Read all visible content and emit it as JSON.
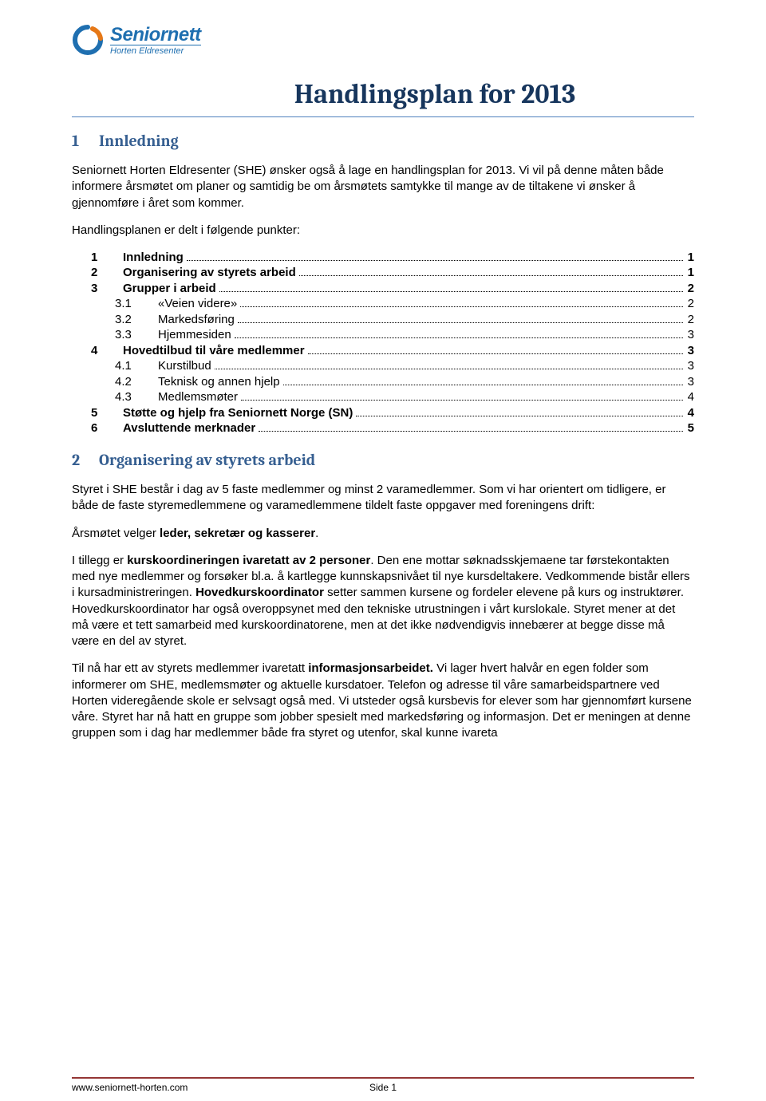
{
  "logo": {
    "main": "Seniornett",
    "sub": "Horten Eldresenter",
    "icon_color": "#1f6fb0",
    "accent_color": "#e67817"
  },
  "title": "Handlingsplan for 2013",
  "section1": {
    "num": "1",
    "heading": "Innledning",
    "p1": "Seniornett Horten Eldresenter (SHE) ønsker også å lage en handlingsplan for 2013. Vi vil på denne måten både informere årsmøtet om planer og samtidig be om årsmøtets samtykke til mange av de tiltakene vi ønsker å gjennomføre i året som kommer.",
    "p2": "Handlingsplanen er delt i følgende punkter:"
  },
  "toc": [
    {
      "level": 0,
      "num": "1",
      "label": "Innledning",
      "page": "1"
    },
    {
      "level": 0,
      "num": "2",
      "label": "Organisering av styrets arbeid",
      "page": "1"
    },
    {
      "level": 0,
      "num": "3",
      "label": "Grupper i arbeid",
      "page": "2"
    },
    {
      "level": 1,
      "num": "3.1",
      "label": "«Veien videre»",
      "page": "2"
    },
    {
      "level": 1,
      "num": "3.2",
      "label": "Markedsføring",
      "page": "2"
    },
    {
      "level": 1,
      "num": "3.3",
      "label": "Hjemmesiden",
      "page": "3"
    },
    {
      "level": 0,
      "num": "4",
      "label": "Hovedtilbud til våre medlemmer",
      "page": "3"
    },
    {
      "level": 1,
      "num": "4.1",
      "label": "Kurstilbud",
      "page": "3"
    },
    {
      "level": 1,
      "num": "4.2",
      "label": "Teknisk og annen hjelp",
      "page": "3"
    },
    {
      "level": 1,
      "num": "4.3",
      "label": "Medlemsmøter",
      "page": "4"
    },
    {
      "level": 0,
      "num": "5",
      "label": "Støtte og hjelp fra Seniornett Norge (SN)",
      "page": "4"
    },
    {
      "level": 0,
      "num": "6",
      "label": "Avsluttende merknader",
      "page": "5"
    }
  ],
  "section2": {
    "num": "2",
    "heading": "Organisering av styrets arbeid",
    "p1a": "Styret i SHE består i dag av 5 faste medlemmer og minst 2 varamedlemmer. Som vi har orientert om tidligere, er både de faste styremedlemmene og varamedlemmene tildelt faste oppgaver med foreningens drift:",
    "p2a": "Årsmøtet velger ",
    "p2b": "leder, sekretær og kasserer",
    "p2c": ".",
    "p3a": "I tillegg er ",
    "p3b": "kurskoordineringen ivaretatt av 2 personer",
    "p3c": ". Den ene mottar søknadsskjemaene tar førstekontakten med nye medlemmer og forsøker bl.a. å kartlegge kunnskapsnivået til nye kursdeltakere. Vedkommende bistår ellers i kursadministreringen. ",
    "p3d": "Hovedkurskoordinator",
    "p3e": " setter sammen kursene og fordeler elevene på kurs og instruktører. Hovedkurskoordinator har også overoppsynet med den tekniske utrustningen i vårt kurslokale. Styret mener at det må være et tett samarbeid med kurskoordinatorene, men at det ikke nødvendigvis innebærer at begge disse må være en del av styret.",
    "p4a": "Til nå har ett av styrets medlemmer ivaretatt ",
    "p4b": "informasjonsarbeidet.",
    "p4c": " Vi lager hvert halvår en egen folder som informerer om SHE, medlemsmøter og aktuelle kursdatoer. Telefon og adresse til våre samarbeidspartnere ved Horten videregående skole er selvsagt også med. Vi utsteder også kursbevis for elever som har gjennomført kursene våre. Styret har nå hatt en gruppe som jobber spesielt med markedsføring og informasjon. Det er meningen at denne gruppen som i dag har medlemmer både fra styret og utenfor, skal kunne ivareta"
  },
  "footer": {
    "url": "www.seniornett-horten.com",
    "page": "Side 1"
  },
  "colors": {
    "heading": "#365f91",
    "title": "#17365d",
    "rule": "#4f81bd",
    "footer_rule": "#943634"
  }
}
